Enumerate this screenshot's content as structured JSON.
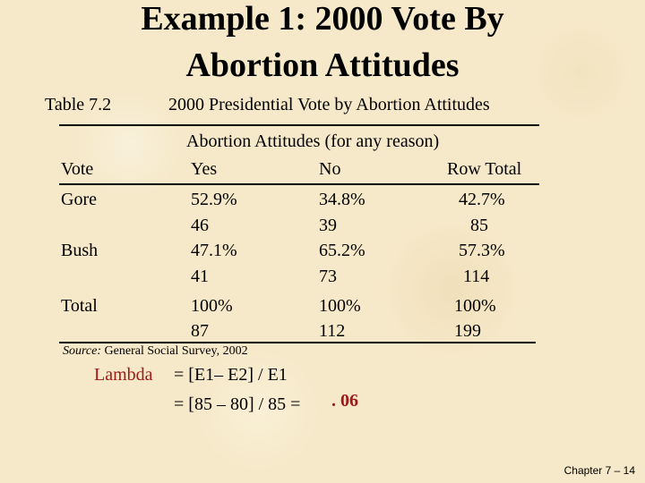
{
  "title": {
    "line1": "Example 1: 2000 Vote By",
    "line2": "Abortion Attitudes"
  },
  "table_label": "Table 7.2",
  "table_caption": "2000 Presidential Vote by Abortion Attitudes",
  "spanner_header": "Abortion Attitudes (for any reason)",
  "columns": {
    "stub": "Vote",
    "c1": "Yes",
    "c2": "No",
    "c3": "Row Total"
  },
  "rows": [
    {
      "label": "Gore",
      "yes_pct": "52.9%",
      "no_pct": "34.8%",
      "total_pct": "42.7%",
      "yes_n": "46",
      "no_n": "39",
      "total_n": "85"
    },
    {
      "label": "Bush",
      "yes_pct": "47.1%",
      "no_pct": "65.2%",
      "total_pct": "57.3%",
      "yes_n": "41",
      "no_n": "73",
      "total_n": "114"
    },
    {
      "label": "Total",
      "yes_pct": "100%",
      "no_pct": "100%",
      "total_pct": "100%",
      "yes_n": "87",
      "no_n": "112",
      "total_n": "199"
    }
  ],
  "source": {
    "label": "Source:",
    "text": "General Social Survey, 2002"
  },
  "lambda": {
    "label": "Lambda",
    "line1": "=  [E1– E2] / E1",
    "line2": "=  [85 – 80] / 85 =",
    "result": ". 06"
  },
  "footer": "Chapter 7 – 14",
  "colors": {
    "background": "#f6e9c9",
    "accent": "#a01818"
  }
}
